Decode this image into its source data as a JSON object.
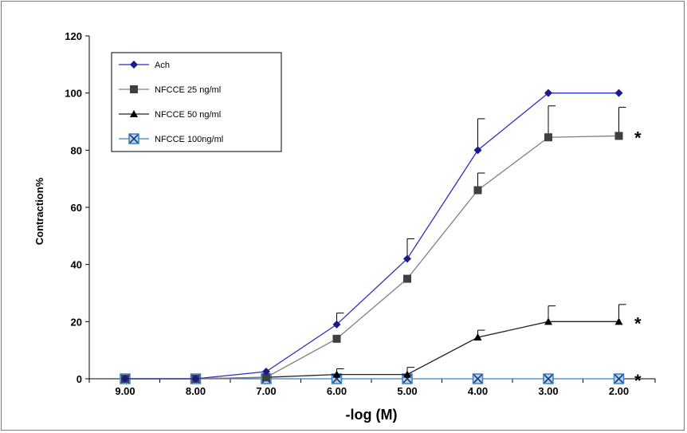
{
  "chart_data": {
    "type": "line",
    "x": [
      "9.00",
      "8.00",
      "7.00",
      "6.00",
      "5.00",
      "4.00",
      "3.00",
      "2.00"
    ],
    "xlabel": "-log (M)",
    "ylabel": "Contraction%",
    "ylim": [
      0,
      120
    ],
    "yticks": [
      "0",
      "20",
      "40",
      "60",
      "80",
      "100",
      "120"
    ],
    "grid": false,
    "legend_position": "top-left",
    "series": [
      {
        "name": "Ach",
        "marker": "diamond",
        "line_color": "#2e2ebf",
        "marker_color": "#1a1a8c",
        "values": [
          0,
          0,
          2.5,
          19,
          42,
          80,
          100,
          100
        ],
        "error": [
          0,
          0,
          0,
          4,
          7,
          11,
          0,
          0
        ]
      },
      {
        "name": "NFCCE 25 ng/ml",
        "marker": "square",
        "line_color": "#808080",
        "marker_color": "#404040",
        "values": [
          0,
          0,
          0.5,
          14,
          35,
          66,
          84.5,
          85
        ],
        "error": [
          0,
          0,
          0,
          0,
          0,
          6,
          11,
          10
        ]
      },
      {
        "name": "NFCCE 50 ng/ml",
        "marker": "triangle",
        "line_color": "#222222",
        "marker_color": "#000000",
        "values": [
          0,
          0,
          0.5,
          1.5,
          1.5,
          14.5,
          20,
          20
        ],
        "error": [
          0,
          0,
          0,
          2,
          2.5,
          2.5,
          5.5,
          6
        ]
      },
      {
        "name": "NFCCE 100ng/ml",
        "marker": "x-square",
        "line_color": "#3a7fc4",
        "marker_color": "#3a7fc4",
        "values": [
          0,
          0,
          0,
          0,
          0,
          0,
          0,
          0
        ],
        "error": [
          0,
          0,
          0,
          0,
          0,
          0,
          0,
          0
        ]
      }
    ],
    "annotations": [
      {
        "text": "*",
        "series": "NFCCE 25 ng/ml"
      },
      {
        "text": "*",
        "series": "NFCCE 50 ng/ml"
      },
      {
        "text": "*",
        "series": "NFCCE 100ng/ml"
      }
    ]
  }
}
